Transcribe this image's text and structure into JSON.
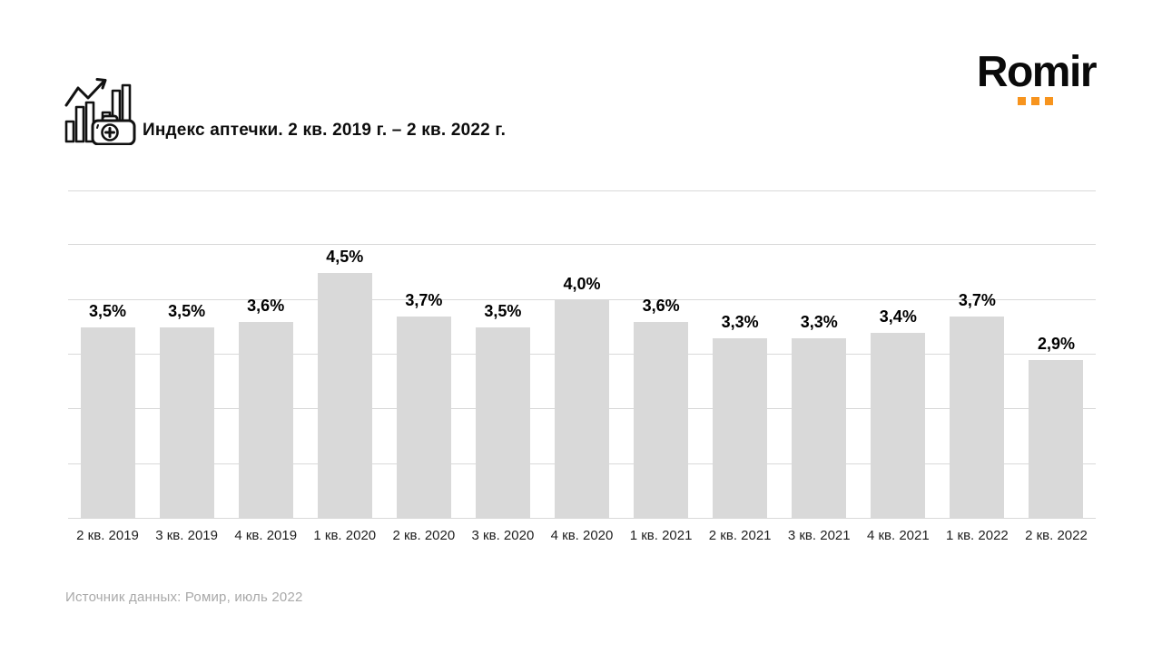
{
  "header": {
    "title": "Индекс аптечки. 2 кв. 2019 г. – 2 кв. 2022 г.",
    "icon": "bar-chart-with-first-aid-kit-icon"
  },
  "logo": {
    "text": "Romir",
    "accent_color": "#F7941E",
    "text_color": "#0a0a0a"
  },
  "chart_data": {
    "type": "bar",
    "title": "Индекс аптечки. 2 кв. 2019 г. – 2 кв. 2022 г.",
    "categories": [
      "2 кв. 2019",
      "3 кв. 2019",
      "4 кв. 2019",
      "1 кв. 2020",
      "2 кв. 2020",
      "3 кв. 2020",
      "4 кв. 2020",
      "1 кв. 2021",
      "2 кв. 2021",
      "3 кв. 2021",
      "4 кв. 2021",
      "1 кв. 2022",
      "2 кв. 2022"
    ],
    "values": [
      3.5,
      3.5,
      3.6,
      4.5,
      3.7,
      3.5,
      4.0,
      3.6,
      3.3,
      3.3,
      3.4,
      3.7,
      2.9
    ],
    "value_labels": [
      "3,5%",
      "3,5%",
      "3,6%",
      "4,5%",
      "3,7%",
      "3,5%",
      "4,0%",
      "3,6%",
      "3,3%",
      "3,3%",
      "3,4%",
      "3,7%",
      "2,9%"
    ],
    "xlabel": "",
    "ylabel": "",
    "ylim": [
      0,
      6
    ],
    "gridline_interval": 1,
    "grid": true,
    "legend": "none",
    "bar_color": "#d9d9d9",
    "gridline_color": "#d9d9d9"
  },
  "footer": {
    "source": "Источник данных: Ромир, июль 2022"
  }
}
